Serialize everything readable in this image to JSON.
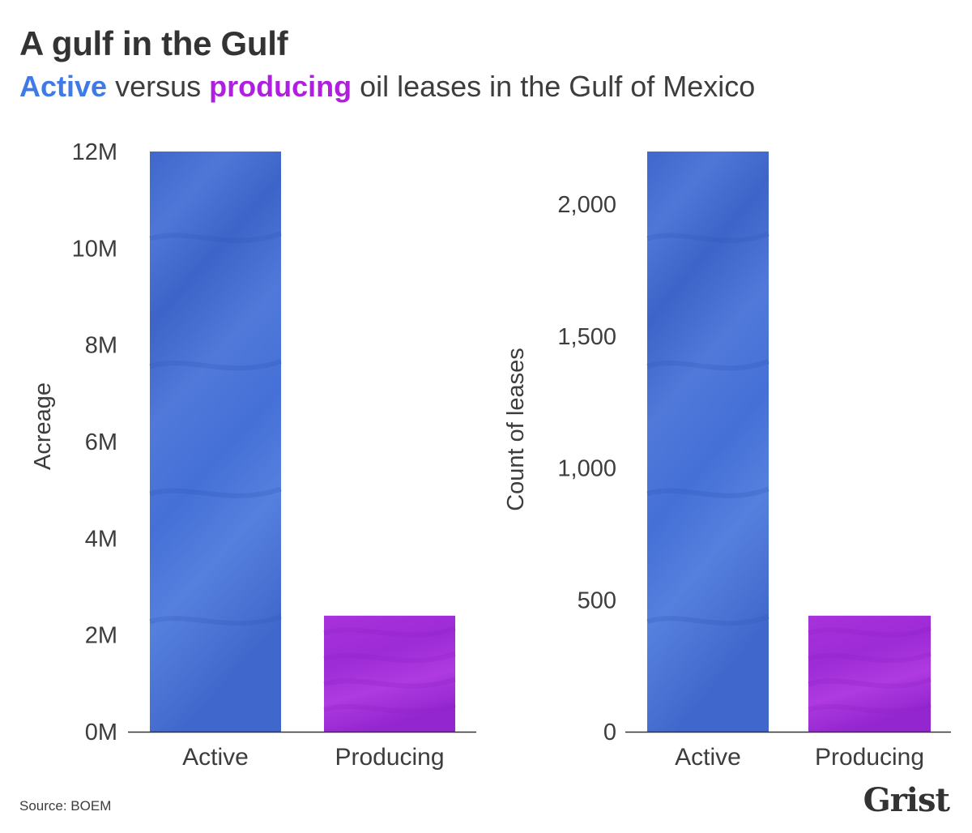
{
  "title": "A gulf in the Gulf",
  "subtitle": {
    "part1": "Active",
    "part2": " versus ",
    "part3": "producing",
    "part4": " oil leases in the Gulf of Mexico",
    "active_color": "#3f7be6",
    "producing_color": "#b01ee0"
  },
  "source": "Source: BOEM",
  "logo": "Grist",
  "colors": {
    "active_bar": "#4a72d6",
    "producing_bar": "#a22ed8",
    "axis": "#333333"
  },
  "chart_data": [
    {
      "type": "bar",
      "categories": [
        "Active",
        "Producing"
      ],
      "values": [
        12000000,
        2400000
      ],
      "xlabel": "",
      "ylabel": "Acreage",
      "ylim": [
        0,
        12000000
      ],
      "yticks": [
        0,
        2000000,
        4000000,
        6000000,
        8000000,
        10000000,
        12000000
      ],
      "yticklabels": [
        "0M",
        "2M",
        "4M",
        "6M",
        "8M",
        "10M",
        "12M"
      ],
      "grid": false
    },
    {
      "type": "bar",
      "categories": [
        "Active",
        "Producing"
      ],
      "values": [
        2200,
        440
      ],
      "xlabel": "",
      "ylabel": "Count of leases",
      "ylim": [
        0,
        2200
      ],
      "yticks": [
        0,
        500,
        1000,
        1500,
        2000
      ],
      "yticklabels": [
        "0",
        "500",
        "1,000",
        "1,500",
        "2,000"
      ],
      "grid": false
    }
  ]
}
